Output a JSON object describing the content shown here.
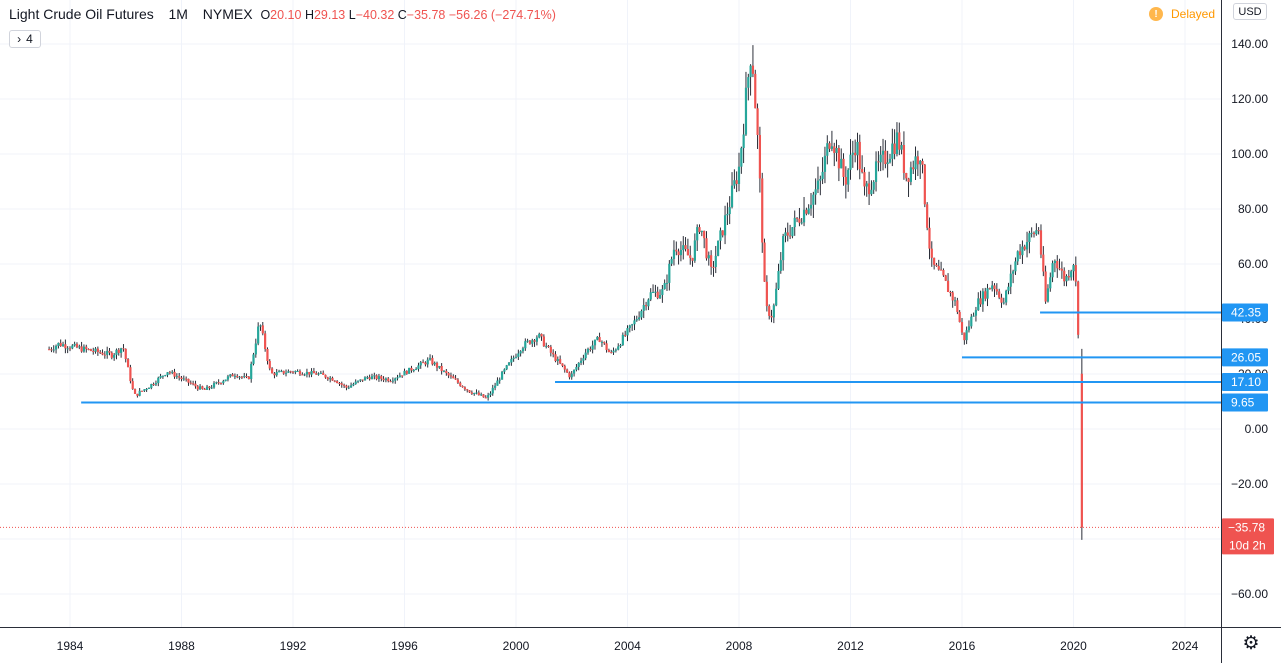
{
  "header": {
    "symbol_title": "Light Crude Oil Futures",
    "interval": "1M",
    "exchange": "NYMEX",
    "open_key": "O",
    "open": "20.10",
    "high_key": "H",
    "high": "29.13",
    "low_key": "L",
    "low": "−40.32",
    "close_key": "C",
    "close": "−35.78",
    "change": "−56.26 (−274.71%)",
    "collapse_label": "4",
    "delayed_label": "Delayed",
    "currency_label": "USD"
  },
  "icons": {
    "collapse": "chevron-right-icon",
    "delayed": "info-icon",
    "settings": "gear-icon"
  },
  "colors": {
    "up": "#26a69a",
    "down": "#ef5350",
    "level_line": "#2196f3",
    "grid": "#f0f3fa",
    "text": "#131722"
  },
  "price_axis": {
    "ticks": [
      "140.00",
      "120.00",
      "100.00",
      "80.00",
      "60.00",
      "40.00",
      "20.00",
      "0.00",
      "−20.00",
      "−40.00",
      "−60.00"
    ]
  },
  "time_axis": {
    "ticks": [
      "1984",
      "1988",
      "1992",
      "1996",
      "2000",
      "2004",
      "2008",
      "2012",
      "2016",
      "2020",
      "2024"
    ]
  },
  "horizontal_levels": [
    {
      "label": "42.35",
      "price": 42.35,
      "from_year": 2018.8
    },
    {
      "label": "26.05",
      "price": 26.05,
      "from_year": 2016.0
    },
    {
      "label": "17.10",
      "price": 17.1,
      "from_year": 2001.4
    },
    {
      "label": "9.65",
      "price": 9.65,
      "from_year": 1984.4
    }
  ],
  "current_price": {
    "label": "−35.78",
    "price": -35.78,
    "countdown": "10d 2h"
  },
  "chart_data": {
    "type": "candlestick",
    "interval": "monthly",
    "x_unit": "year",
    "ylim": [
      -70,
      150
    ],
    "xlim": [
      1982.2,
      2025.5
    ],
    "grid": true,
    "anchors": [
      [
        1983.25,
        29
      ],
      [
        1983.6,
        31
      ],
      [
        1984.5,
        29
      ],
      [
        1985.5,
        27
      ],
      [
        1985.9,
        30
      ],
      [
        1986.3,
        12
      ],
      [
        1986.9,
        16
      ],
      [
        1987.5,
        21
      ],
      [
        1988.8,
        14
      ],
      [
        1989.9,
        20
      ],
      [
        1990.4,
        18
      ],
      [
        1990.8,
        39
      ],
      [
        1991.2,
        20
      ],
      [
        1992.0,
        21
      ],
      [
        1992.9,
        20
      ],
      [
        1993.5,
        18
      ],
      [
        1993.9,
        15
      ],
      [
        1994.7,
        19
      ],
      [
        1995.5,
        18
      ],
      [
        1996.3,
        22
      ],
      [
        1996.9,
        25
      ],
      [
        1997.5,
        20
      ],
      [
        1998.3,
        14
      ],
      [
        1998.95,
        11
      ],
      [
        1999.5,
        20
      ],
      [
        2000.2,
        30
      ],
      [
        2000.8,
        34
      ],
      [
        2001.3,
        27
      ],
      [
        2001.95,
        19
      ],
      [
        2002.5,
        28
      ],
      [
        2003.0,
        33
      ],
      [
        2003.4,
        27
      ],
      [
        2004.2,
        38
      ],
      [
        2004.8,
        49
      ],
      [
        2005.3,
        50
      ],
      [
        2005.7,
        67
      ],
      [
        2006.3,
        62
      ],
      [
        2006.6,
        75
      ],
      [
        2007.0,
        57
      ],
      [
        2007.5,
        76
      ],
      [
        2008.0,
        95
      ],
      [
        2008.45,
        140
      ],
      [
        2008.7,
        100
      ],
      [
        2008.95,
        44
      ],
      [
        2009.2,
        41
      ],
      [
        2009.6,
        69
      ],
      [
        2010.3,
        79
      ],
      [
        2010.9,
        89
      ],
      [
        2011.3,
        108
      ],
      [
        2011.8,
        90
      ],
      [
        2012.2,
        105
      ],
      [
        2012.5,
        86
      ],
      [
        2013.0,
        95
      ],
      [
        2013.7,
        106
      ],
      [
        2014.0,
        92
      ],
      [
        2014.5,
        101
      ],
      [
        2014.9,
        60
      ],
      [
        2015.3,
        55
      ],
      [
        2015.8,
        45
      ],
      [
        2016.05,
        32
      ],
      [
        2016.5,
        45
      ],
      [
        2017.1,
        53
      ],
      [
        2017.5,
        46
      ],
      [
        2018.0,
        64
      ],
      [
        2018.45,
        70
      ],
      [
        2018.75,
        73
      ],
      [
        2019.0,
        46
      ],
      [
        2019.3,
        63
      ],
      [
        2019.7,
        54
      ],
      [
        2020.0,
        61
      ],
      [
        2020.1,
        51
      ],
      [
        2020.2,
        28
      ],
      [
        2020.3,
        -35.78
      ]
    ],
    "last_candle": {
      "open": 20.1,
      "high": 29.13,
      "low": -40.32,
      "close": -35.78
    }
  }
}
